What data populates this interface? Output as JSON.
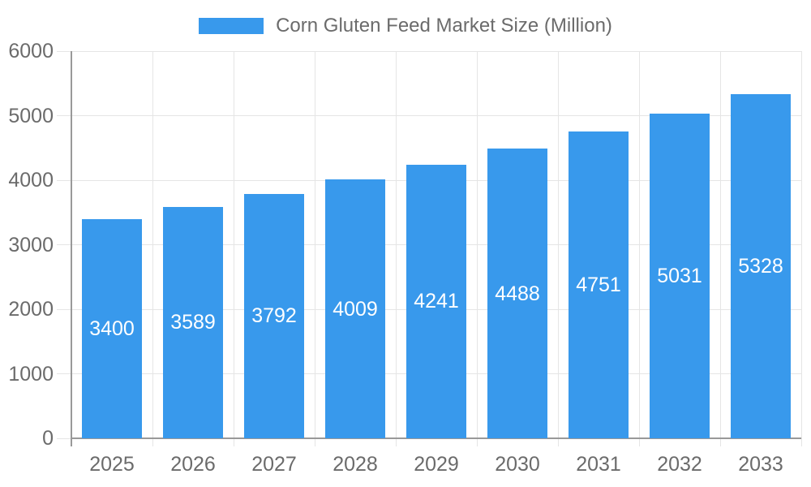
{
  "legend": {
    "label": "Corn Gluten Feed Market Size (Million)"
  },
  "chart_data": {
    "type": "bar",
    "title": "Corn Gluten Feed Market Size (Million)",
    "categories": [
      "2025",
      "2026",
      "2027",
      "2028",
      "2029",
      "2030",
      "2031",
      "2032",
      "2033"
    ],
    "values": [
      3400,
      3589,
      3792,
      4009,
      4241,
      4488,
      4751,
      5031,
      5328
    ],
    "xlabel": "",
    "ylabel": "",
    "ylim": [
      0,
      6000
    ],
    "yticks": [
      0,
      1000,
      2000,
      3000,
      4000,
      5000,
      6000
    ],
    "grid": true,
    "legend_position": "top",
    "colors": {
      "bar": "#3899EC",
      "bar_label": "#ffffff",
      "axis_text": "#6b6b6b",
      "grid": "#e5e5e5",
      "axis_line": "#999999",
      "background": "#ffffff"
    }
  }
}
